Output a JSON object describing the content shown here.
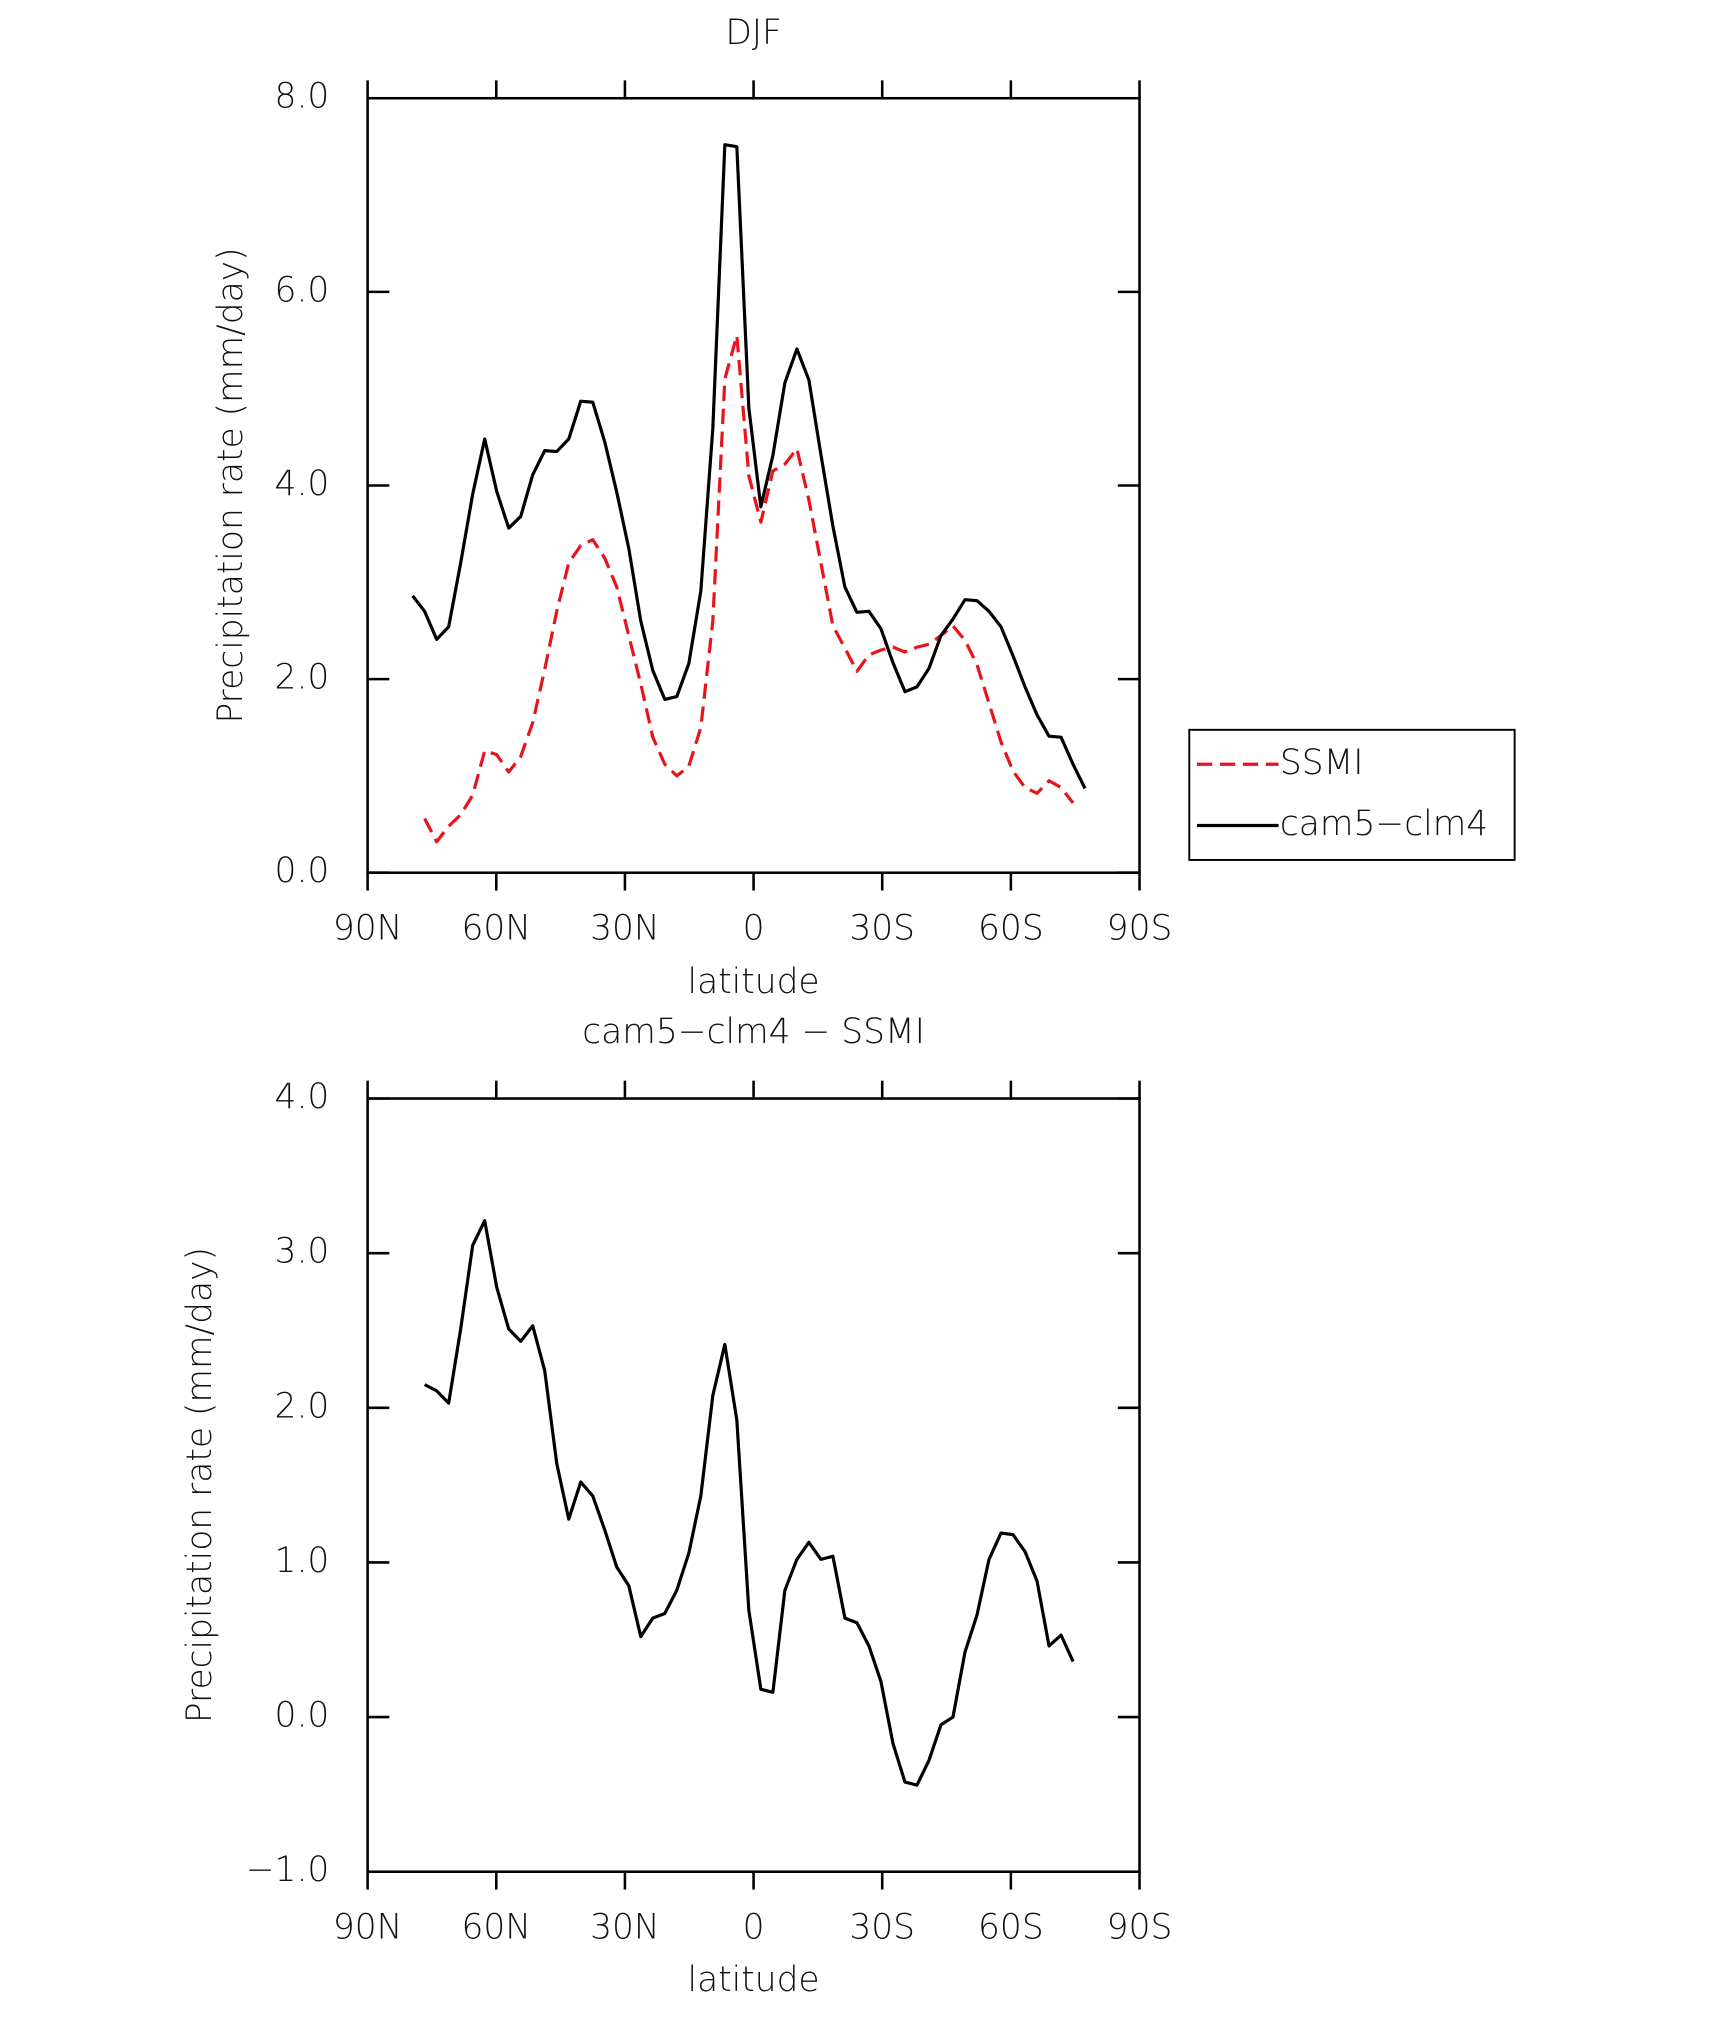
{
  "chart_data": [
    {
      "type": "line",
      "title": "DJF",
      "x_label": "latitude",
      "y_label": "Precipitation rate (mm/day)",
      "x": [
        79.5,
        76.7,
        73.9,
        71.1,
        68.3,
        65.5,
        62.7,
        59.9,
        57.1,
        54.3,
        51.5,
        48.7,
        45.9,
        43.1,
        40.3,
        37.5,
        34.7,
        31.9,
        29.1,
        26.3,
        23.5,
        20.7,
        17.9,
        15.1,
        12.3,
        9.5,
        6.7,
        3.9,
        1.1,
        -1.7,
        -4.5,
        -7.3,
        -10.1,
        -12.9,
        -15.7,
        -18.5,
        -21.3,
        -24.1,
        -26.9,
        -29.7,
        -32.5,
        -35.3,
        -38.1,
        -40.9,
        -43.7,
        -46.5,
        -49.3,
        -52.1,
        -54.9,
        -57.7,
        -60.5,
        -63.3,
        -66.1,
        -68.9,
        -71.7,
        -74.5,
        -77.3
      ],
      "series": [
        {
          "name": "SSMI",
          "color": "#e8141b",
          "dashed": true,
          "values": [
            null,
            0.56,
            0.32,
            0.48,
            0.6,
            0.8,
            1.26,
            1.22,
            1.04,
            1.2,
            1.55,
            2.1,
            2.7,
            3.2,
            3.38,
            3.44,
            3.25,
            2.95,
            2.45,
            1.95,
            1.4,
            1.12,
            1.0,
            1.1,
            1.5,
            2.6,
            5.1,
            5.55,
            4.1,
            3.62,
            4.15,
            4.22,
            4.38,
            3.85,
            3.2,
            2.55,
            2.32,
            2.08,
            2.25,
            2.3,
            2.33,
            2.28,
            2.33,
            2.36,
            2.45,
            2.55,
            2.4,
            2.15,
            1.75,
            1.35,
            1.05,
            0.88,
            0.82,
            0.95,
            0.88,
            0.72,
            null
          ]
        },
        {
          "name": "cam5−clm4",
          "color": "#000000",
          "dashed": false,
          "values": [
            2.86,
            2.7,
            2.41,
            2.54,
            3.2,
            3.91,
            4.48,
            3.94,
            3.56,
            3.68,
            4.11,
            4.36,
            4.35,
            4.48,
            4.87,
            4.86,
            4.45,
            3.93,
            3.35,
            2.6,
            2.09,
            1.79,
            1.82,
            2.16,
            2.91,
            4.59,
            7.52,
            7.5,
            4.8,
            3.78,
            4.31,
            5.06,
            5.41,
            5.09,
            4.32,
            3.58,
            2.95,
            2.69,
            2.7,
            2.52,
            2.17,
            1.87,
            1.92,
            2.11,
            2.45,
            2.62,
            2.82,
            2.81,
            2.7,
            2.54,
            2.24,
            1.92,
            1.63,
            1.41,
            1.4,
            1.12,
            0.87
          ]
        }
      ],
      "xlim": [
        90,
        -90
      ],
      "xticks": [
        {
          "value": 90,
          "label": "90N"
        },
        {
          "value": 60,
          "label": "60N"
        },
        {
          "value": 30,
          "label": "30N"
        },
        0,
        {
          "value": -30,
          "label": "30S"
        },
        {
          "value": -60,
          "label": "60S"
        },
        {
          "value": -90,
          "label": "90S"
        }
      ],
      "ylim": [
        0,
        8
      ],
      "yticks": [
        {
          "value": 0,
          "label": "0.0"
        },
        {
          "value": 2,
          "label": "2.0"
        },
        {
          "value": 4,
          "label": "4.0"
        },
        {
          "value": 6,
          "label": "6.0"
        },
        {
          "value": 8,
          "label": "8.0"
        }
      ],
      "legend": "outside-right"
    },
    {
      "type": "line",
      "title": "cam5−clm4 − SSMI",
      "x_label": "latitude",
      "y_label": "Precipitation rate (mm/day)",
      "x": [
        79.5,
        76.7,
        73.9,
        71.1,
        68.3,
        65.5,
        62.7,
        59.9,
        57.1,
        54.3,
        51.5,
        48.7,
        45.9,
        43.1,
        40.3,
        37.5,
        34.7,
        31.9,
        29.1,
        26.3,
        23.5,
        20.7,
        17.9,
        15.1,
        12.3,
        9.5,
        6.7,
        3.9,
        1.1,
        -1.7,
        -4.5,
        -7.3,
        -10.1,
        -12.9,
        -15.7,
        -18.5,
        -21.3,
        -24.1,
        -26.9,
        -29.7,
        -32.5,
        -35.3,
        -38.1,
        -40.9,
        -43.7,
        -46.5,
        -49.3,
        -52.1,
        -54.9,
        -57.7,
        -60.5,
        -63.3,
        -66.1,
        -68.9,
        -71.7,
        -74.5,
        -77.3
      ],
      "series": [
        {
          "color": "#000000",
          "dashed": false,
          "values": [
            null,
            2.15,
            2.11,
            2.03,
            2.51,
            3.05,
            3.21,
            2.78,
            2.51,
            2.43,
            2.53,
            2.24,
            1.64,
            1.28,
            1.52,
            1.43,
            1.21,
            0.97,
            0.85,
            0.52,
            0.64,
            0.67,
            0.82,
            1.06,
            1.43,
            2.08,
            2.41,
            1.92,
            0.69,
            0.18,
            0.16,
            0.82,
            1.02,
            1.13,
            1.02,
            1.04,
            0.64,
            0.61,
            0.46,
            0.23,
            -0.17,
            -0.42,
            -0.44,
            -0.28,
            -0.05,
            0.0,
            0.42,
            0.66,
            1.02,
            1.19,
            1.18,
            1.07,
            0.88,
            0.46,
            0.53,
            0.36,
            null
          ]
        }
      ],
      "xlim": [
        90,
        -90
      ],
      "xticks": [
        {
          "value": 90,
          "label": "90N"
        },
        {
          "value": 60,
          "label": "60N"
        },
        {
          "value": 30,
          "label": "30N"
        },
        0,
        {
          "value": -30,
          "label": "30S"
        },
        {
          "value": -60,
          "label": "60S"
        },
        {
          "value": -90,
          "label": "90S"
        }
      ],
      "ylim": [
        -1,
        4
      ],
      "yticks": [
        {
          "value": -1,
          "label": "−1.0"
        },
        {
          "value": 0,
          "label": "0.0"
        },
        {
          "value": 1,
          "label": "1.0"
        },
        {
          "value": 2,
          "label": "2.0"
        },
        {
          "value": 3,
          "label": "3.0"
        },
        {
          "value": 4,
          "label": "4.0"
        }
      ]
    }
  ]
}
